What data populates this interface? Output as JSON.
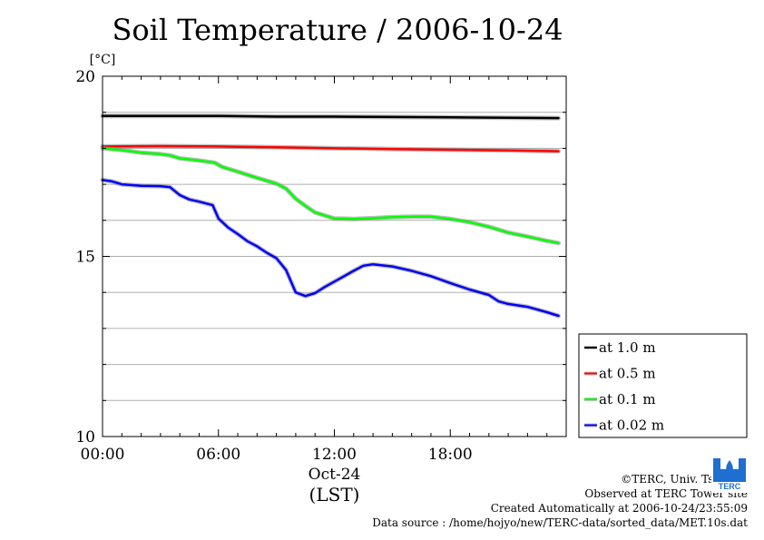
{
  "title": "Soil Temperature / 2006-10-24",
  "chart_data": {
    "type": "line",
    "title": "Soil Temperature / 2006-10-24",
    "ylabel": "[°C]",
    "xlabel": "(LST)",
    "date_label": "Oct-24",
    "ylim": [
      10,
      20
    ],
    "xlim": [
      0,
      24
    ],
    "y_ticks": [
      10,
      15,
      20
    ],
    "y_tick_labels": [
      "10",
      "15",
      "20"
    ],
    "x_ticks": [
      0,
      6,
      12,
      18
    ],
    "x_tick_labels": [
      "00:00",
      "06:00",
      "12:00",
      "18:00"
    ],
    "grid": true,
    "legend_position": "bottom-right",
    "series": [
      {
        "name": "at 1.0 m",
        "color": "#000000",
        "x": [
          0,
          3,
          6,
          9,
          12,
          15,
          18,
          21,
          23.6
        ],
        "values": [
          18.9,
          18.9,
          18.9,
          18.88,
          18.88,
          18.87,
          18.86,
          18.85,
          18.84
        ]
      },
      {
        "name": "at 0.5 m",
        "color": "#ff0000",
        "x": [
          0,
          3,
          6,
          9,
          12,
          15,
          18,
          21,
          23.6
        ],
        "values": [
          18.05,
          18.06,
          18.05,
          18.03,
          18.0,
          17.98,
          17.96,
          17.94,
          17.92
        ]
      },
      {
        "name": "at 0.1 m",
        "color": "#00ff00",
        "x": [
          0,
          1,
          2,
          3,
          3.5,
          4,
          5,
          5.8,
          6.2,
          7,
          8,
          9,
          9.5,
          10,
          10.5,
          11,
          12,
          13,
          14,
          15,
          16,
          17,
          18,
          19,
          20,
          21,
          22,
          23,
          23.6
        ],
        "values": [
          18.0,
          17.95,
          17.88,
          17.84,
          17.8,
          17.72,
          17.66,
          17.6,
          17.48,
          17.35,
          17.18,
          17.02,
          16.88,
          16.6,
          16.4,
          16.22,
          16.05,
          16.04,
          16.06,
          16.09,
          16.1,
          16.1,
          16.04,
          15.95,
          15.82,
          15.66,
          15.55,
          15.43,
          15.37
        ]
      },
      {
        "name": "at 0.02 m",
        "color": "#0000ff",
        "x": [
          0,
          0.5,
          1,
          2,
          3,
          3.5,
          4,
          4.5,
          5,
          5.7,
          6,
          6.5,
          7,
          7.5,
          8,
          8.5,
          9,
          9.5,
          10,
          10.5,
          11,
          11.5,
          12,
          13,
          13.5,
          14,
          15,
          16,
          17,
          18,
          19,
          20,
          20.5,
          21,
          22,
          23,
          23.6
        ],
        "values": [
          17.12,
          17.08,
          17.0,
          16.96,
          16.95,
          16.92,
          16.7,
          16.58,
          16.52,
          16.42,
          16.05,
          15.8,
          15.62,
          15.42,
          15.28,
          15.1,
          14.95,
          14.62,
          14.0,
          13.9,
          13.98,
          14.15,
          14.3,
          14.6,
          14.74,
          14.78,
          14.72,
          14.6,
          14.45,
          14.26,
          14.08,
          13.93,
          13.75,
          13.68,
          13.6,
          13.45,
          13.35
        ]
      }
    ]
  },
  "credits": {
    "copyright": "©TERC, Univ. Tsukuba",
    "observed": "Observed at TERC Tower site",
    "created": "Created Automatically at 2006-10-24/23:55:09",
    "source": "Data source : /home/hojyo/new/TERC-data/sorted_data/MET.10s.dat"
  },
  "logo": {
    "text": "TERC",
    "color": "#1e6fd0"
  }
}
